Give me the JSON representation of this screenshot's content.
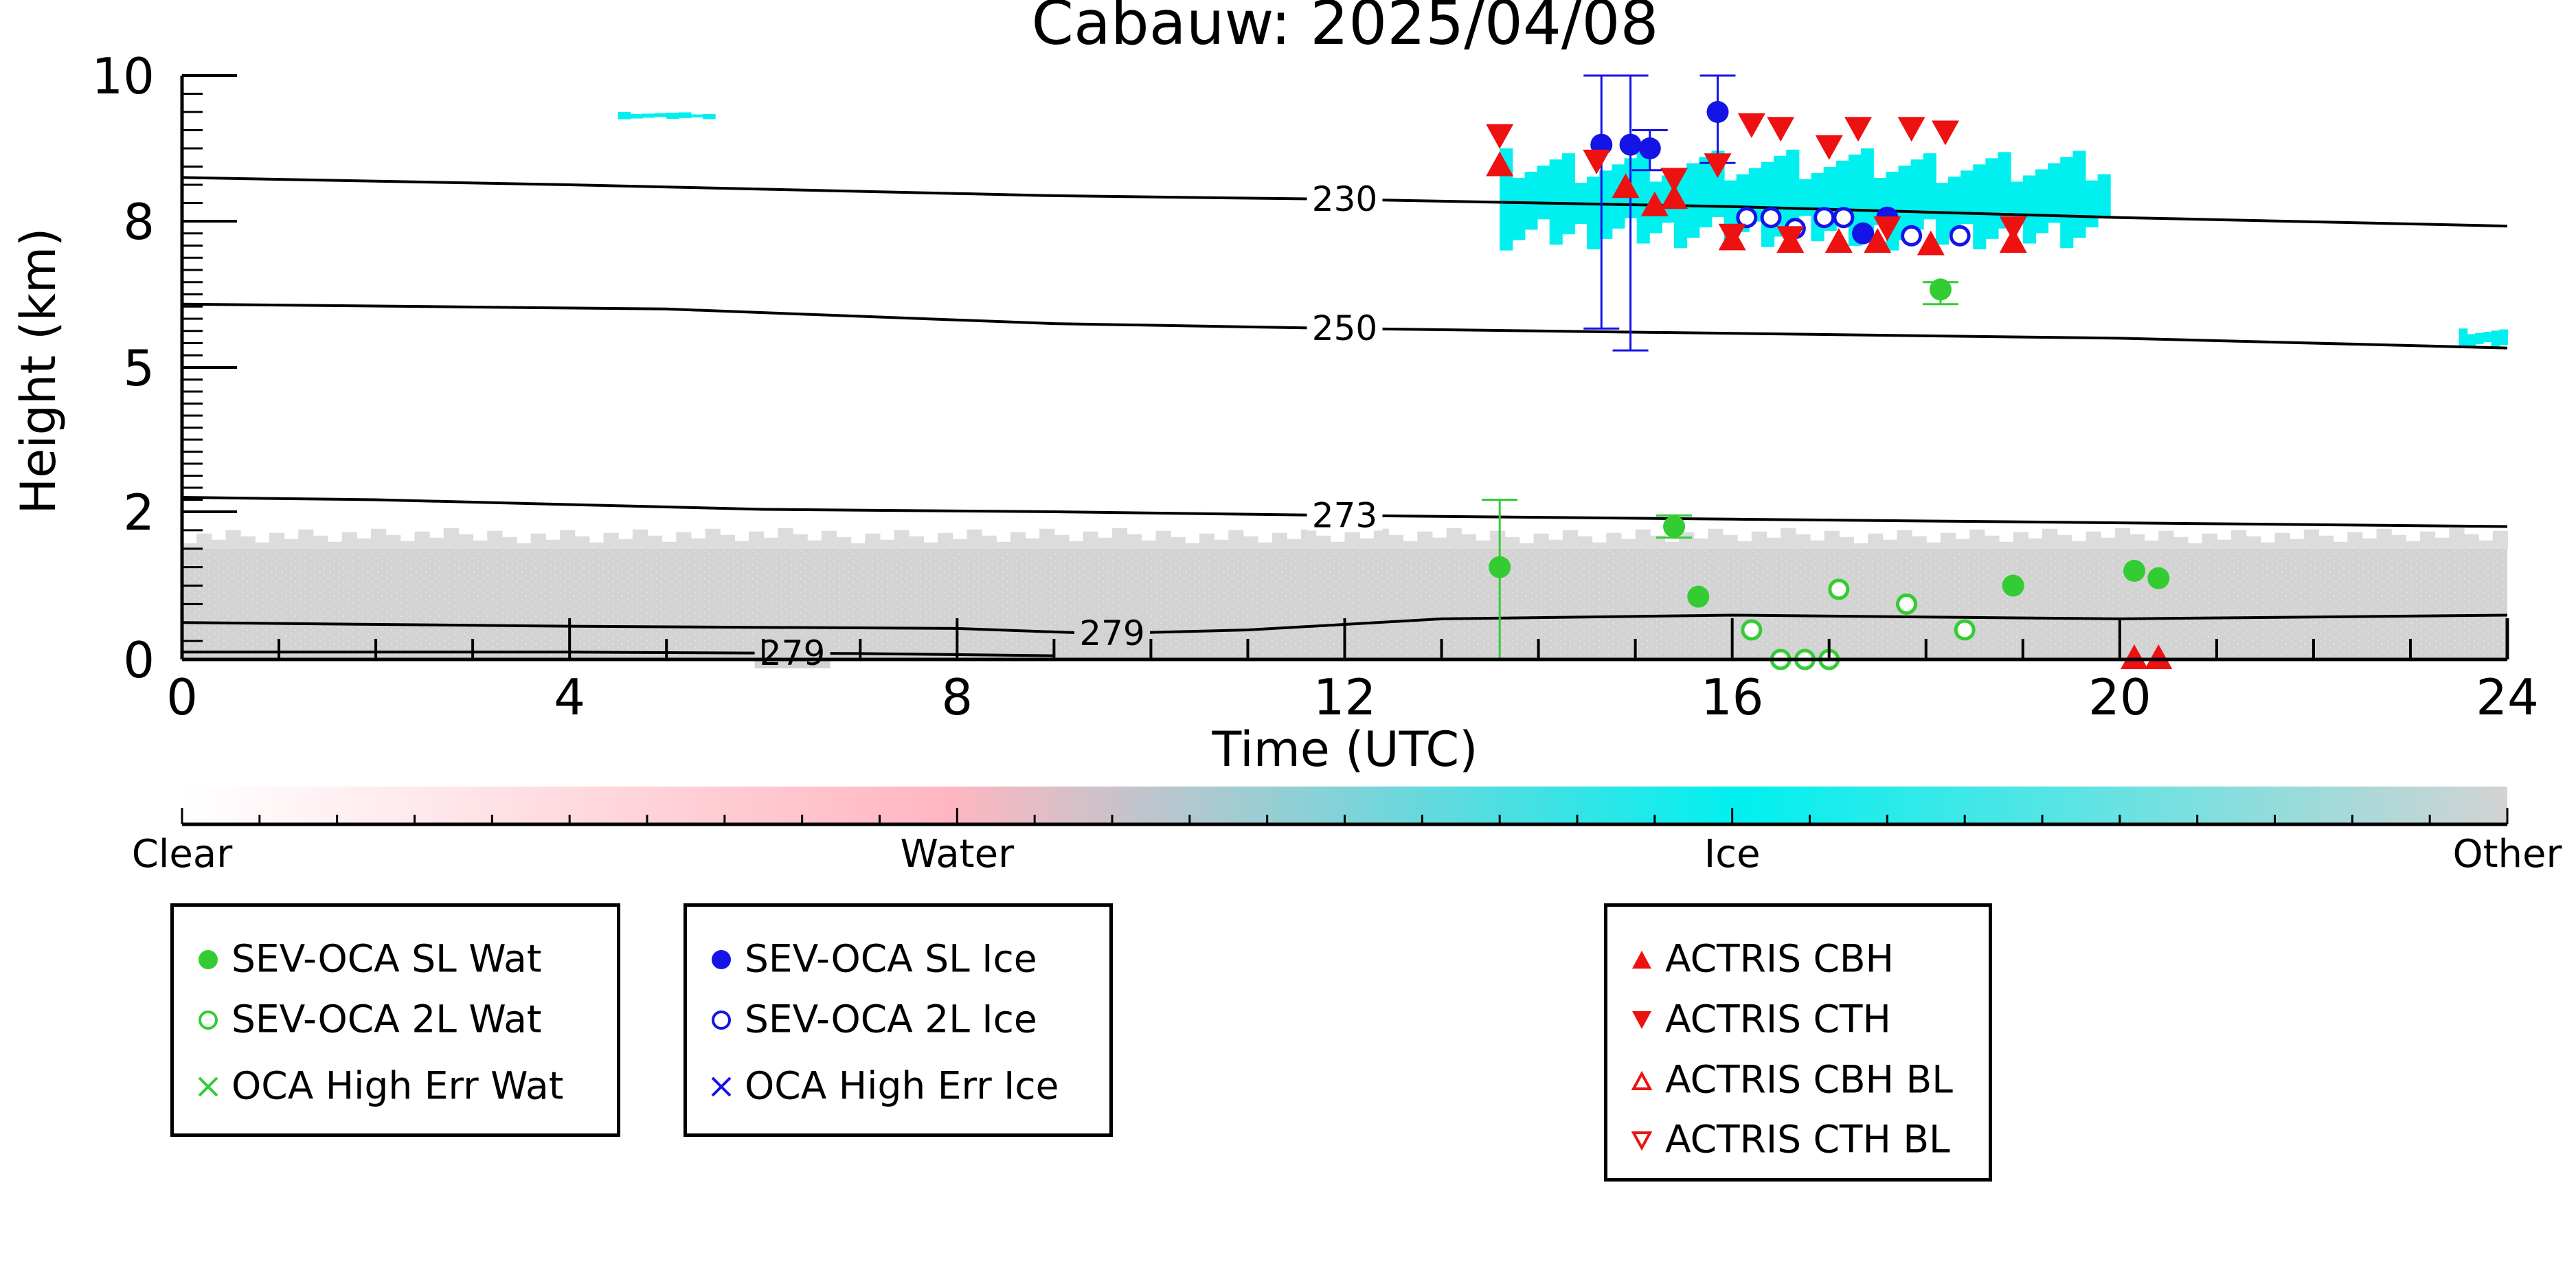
{
  "chart_data": {
    "type": "scatter",
    "title": "Cabauw: 2025/04/08",
    "xlabel": "Time (UTC)",
    "ylabel": "Height (km)",
    "xlim": [
      0,
      24
    ],
    "ylim": [
      0,
      10
    ],
    "y_scale": "quasi-log",
    "x_ticks": [
      "0",
      "4",
      "8",
      "12",
      "16",
      "20",
      "24"
    ],
    "y_ticks": [
      "0",
      "2",
      "5",
      "8",
      "10"
    ],
    "y_tick_values": [
      0,
      2,
      5,
      8,
      10
    ],
    "grid": false,
    "background_classification": {
      "colorbar_labels": [
        "Clear",
        "Water",
        "Ice",
        "Other"
      ],
      "colors": {
        "clear": "#ffffff",
        "water": "#ffb6c1",
        "ice": "#00f0f0",
        "other": "#d3d3d3"
      },
      "regions": [
        {
          "class": "other",
          "description_time": [
            0,
            24
          ],
          "height_km": [
            0,
            1.5
          ]
        },
        {
          "class": "ice",
          "time": [
            13.6,
            19.9
          ],
          "height_km": [
            7.4,
            9.0
          ]
        },
        {
          "class": "ice",
          "time": [
            4.5,
            5.5
          ],
          "height_km": [
            9.4,
            9.5
          ]
        },
        {
          "class": "ice",
          "time": [
            23.5,
            24
          ],
          "height_km": [
            5.4,
            5.8
          ]
        }
      ]
    },
    "temperature_contours": [
      {
        "label": "230",
        "x": [
          0,
          4,
          9,
          12,
          16,
          20,
          24
        ],
        "y": [
          8.6,
          8.5,
          8.35,
          8.3,
          8.2,
          8.05,
          7.9
        ]
      },
      {
        "label": "250",
        "x": [
          0,
          5,
          9,
          12,
          16,
          20,
          24
        ],
        "y": [
          6.3,
          6.2,
          5.9,
          5.8,
          5.7,
          5.6,
          5.4
        ]
      },
      {
        "label": "273",
        "x": [
          0,
          2,
          6,
          9,
          12,
          16,
          20,
          24
        ],
        "y": [
          2.3,
          2.25,
          2.05,
          2.0,
          1.95,
          1.9,
          1.85,
          1.8
        ]
      },
      {
        "label": "279",
        "x": [
          0,
          4,
          8,
          9.5,
          11,
          13,
          16,
          20,
          24
        ],
        "y": [
          0.5,
          0.45,
          0.42,
          0.35,
          0.4,
          0.55,
          0.6,
          0.55,
          0.6
        ]
      },
      {
        "label": "279",
        "x": [
          0,
          4,
          7,
          9
        ],
        "y": [
          0.1,
          0.1,
          0.08,
          0.05
        ]
      }
    ],
    "series": [
      {
        "name": "SEV-OCA SL Wat",
        "marker": "filled-circle",
        "color": "#33cc33",
        "points": [
          {
            "x": 13.6,
            "y": 1.25,
            "err_low": 0.0,
            "err_high": 2.25
          },
          {
            "x": 15.4,
            "y": 1.8,
            "err_low": 1.65,
            "err_high": 1.95
          },
          {
            "x": 15.65,
            "y": 0.85
          },
          {
            "x": 18.15,
            "y": 6.6,
            "err_low": 6.3,
            "err_high": 6.75
          },
          {
            "x": 18.9,
            "y": 1.0
          },
          {
            "x": 20.15,
            "y": 1.2
          },
          {
            "x": 20.4,
            "y": 1.1
          }
        ]
      },
      {
        "name": "SEV-OCA 2L Wat",
        "marker": "open-circle",
        "color": "#33cc33",
        "points": [
          {
            "x": 16.2,
            "y": 0.4
          },
          {
            "x": 16.5,
            "y": 0.0
          },
          {
            "x": 16.75,
            "y": 0.0
          },
          {
            "x": 17.0,
            "y": 0.0
          },
          {
            "x": 17.1,
            "y": 0.95
          },
          {
            "x": 17.8,
            "y": 0.75
          },
          {
            "x": 18.4,
            "y": 0.4
          }
        ]
      },
      {
        "name": "SEV-OCA SL Ice",
        "marker": "filled-circle",
        "color": "#1414e6",
        "points": [
          {
            "x": 14.65,
            "y": 9.05,
            "err_low": 5.8,
            "err_high": 10.0
          },
          {
            "x": 14.95,
            "y": 9.05,
            "err_low": 5.35,
            "err_high": 10.0
          },
          {
            "x": 15.15,
            "y": 9.0,
            "err_low": 8.7,
            "err_high": 9.25
          },
          {
            "x": 15.85,
            "y": 9.5,
            "err_low": 8.8,
            "err_high": 10.0
          },
          {
            "x": 17.35,
            "y": 7.75
          },
          {
            "x": 17.6,
            "y": 8.05
          }
        ]
      },
      {
        "name": "SEV-OCA 2L Ice",
        "marker": "open-circle",
        "color": "#1414e6",
        "points": [
          {
            "x": 16.15,
            "y": 8.05
          },
          {
            "x": 16.4,
            "y": 8.05
          },
          {
            "x": 16.65,
            "y": 7.85
          },
          {
            "x": 16.95,
            "y": 8.05
          },
          {
            "x": 17.15,
            "y": 8.05
          },
          {
            "x": 17.85,
            "y": 7.7
          },
          {
            "x": 18.35,
            "y": 7.7
          }
        ]
      },
      {
        "name": "OCA High Err Wat",
        "marker": "x",
        "color": "#33cc33",
        "points": []
      },
      {
        "name": "OCA High Err Ice",
        "marker": "x",
        "color": "#1414e6",
        "points": []
      },
      {
        "name": "ACTRIS CBH",
        "marker": "triangle-up",
        "color": "#ee1111",
        "points": [
          {
            "x": 13.6,
            "y": 8.75
          },
          {
            "x": 14.9,
            "y": 8.45
          },
          {
            "x": 15.2,
            "y": 8.2
          },
          {
            "x": 15.4,
            "y": 8.3
          },
          {
            "x": 16.0,
            "y": 7.6
          },
          {
            "x": 16.6,
            "y": 7.55
          },
          {
            "x": 17.1,
            "y": 7.55
          },
          {
            "x": 17.5,
            "y": 7.55
          },
          {
            "x": 18.05,
            "y": 7.5
          },
          {
            "x": 18.9,
            "y": 7.55
          },
          {
            "x": 20.15,
            "y": 0.0
          },
          {
            "x": 20.4,
            "y": 0.0
          }
        ]
      },
      {
        "name": "ACTRIS CTH",
        "marker": "triangle-down",
        "color": "#ee1111",
        "points": [
          {
            "x": 13.6,
            "y": 9.2
          },
          {
            "x": 14.6,
            "y": 8.85
          },
          {
            "x": 15.4,
            "y": 8.6
          },
          {
            "x": 15.85,
            "y": 8.8
          },
          {
            "x": 16.0,
            "y": 7.75
          },
          {
            "x": 16.2,
            "y": 9.35
          },
          {
            "x": 16.5,
            "y": 9.3
          },
          {
            "x": 16.6,
            "y": 7.7
          },
          {
            "x": 17.0,
            "y": 9.05
          },
          {
            "x": 17.3,
            "y": 9.3
          },
          {
            "x": 17.6,
            "y": 7.9
          },
          {
            "x": 17.85,
            "y": 9.3
          },
          {
            "x": 18.2,
            "y": 9.25
          },
          {
            "x": 18.9,
            "y": 7.9
          }
        ]
      },
      {
        "name": "ACTRIS CBH BL",
        "marker": "open-triangle-up",
        "color": "#ee1111",
        "points": []
      },
      {
        "name": "ACTRIS CTH BL",
        "marker": "open-triangle-down",
        "color": "#ee1111",
        "points": []
      }
    ]
  },
  "legends": {
    "box1": [
      "SEV-OCA SL Wat",
      "SEV-OCA 2L Wat",
      "OCA High Err Wat"
    ],
    "box2": [
      "SEV-OCA SL Ice",
      "SEV-OCA 2L Ice",
      "OCA High Err Ice"
    ],
    "box3": [
      "ACTRIS CBH",
      "ACTRIS CTH",
      "ACTRIS CBH BL",
      "ACTRIS CTH BL"
    ]
  }
}
